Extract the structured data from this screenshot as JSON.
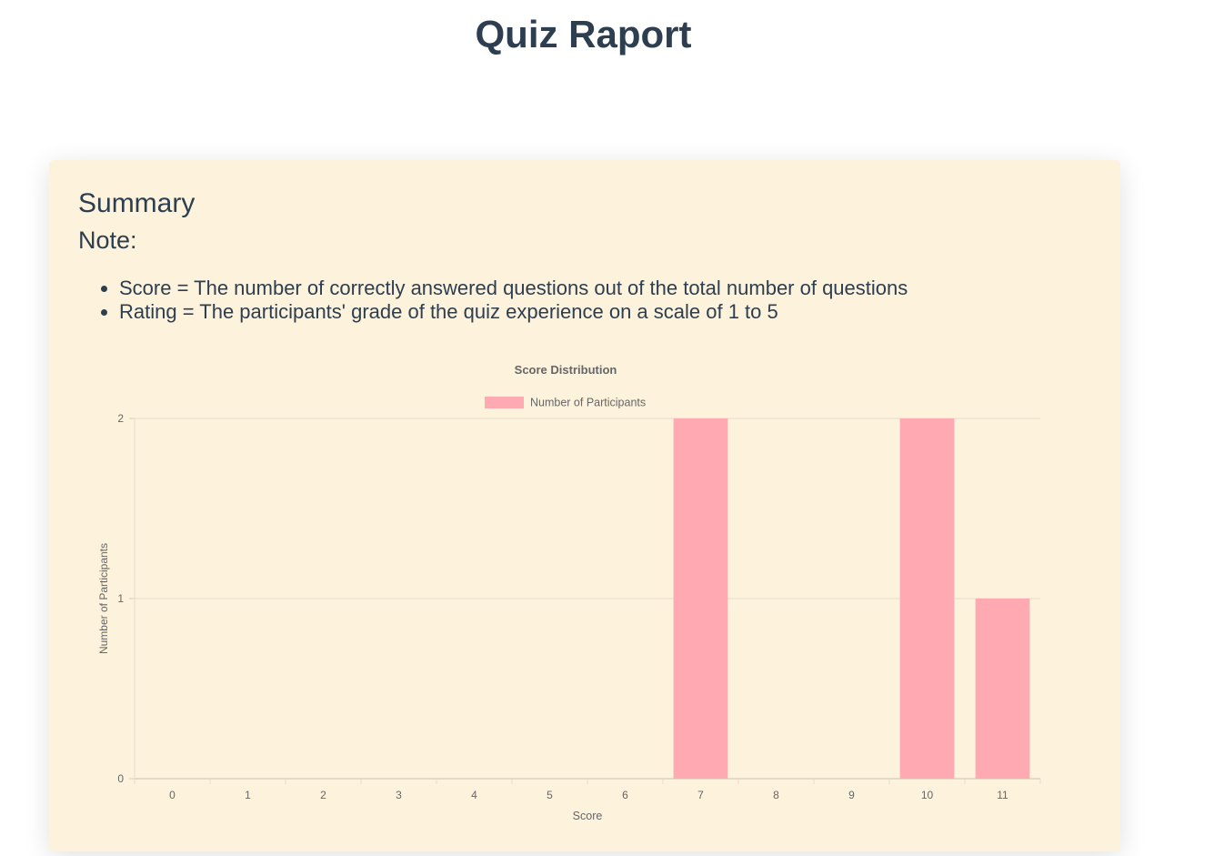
{
  "page": {
    "title": "Quiz Raport"
  },
  "summary": {
    "title": "Summary",
    "note_label": "Note:",
    "notes": [
      "Score = The number of correctly answered questions out of the total number of questions",
      "Rating = The participants' grade of the quiz experience on a scale of 1 to 5"
    ]
  },
  "chart_data": {
    "type": "bar",
    "title": "Score Distribution",
    "xlabel": "Score",
    "ylabel": "Number of Participants",
    "categories": [
      "0",
      "1",
      "2",
      "3",
      "4",
      "5",
      "6",
      "7",
      "8",
      "9",
      "10",
      "11"
    ],
    "series": [
      {
        "name": "Number of Participants",
        "values": [
          0,
          0,
          0,
          0,
          0,
          0,
          0,
          2,
          0,
          0,
          2,
          1
        ],
        "color": "#ffaab2"
      }
    ],
    "ylim": [
      0,
      2
    ],
    "yticks": [
      0,
      1,
      2
    ],
    "grid": true,
    "legend": "top-center"
  }
}
